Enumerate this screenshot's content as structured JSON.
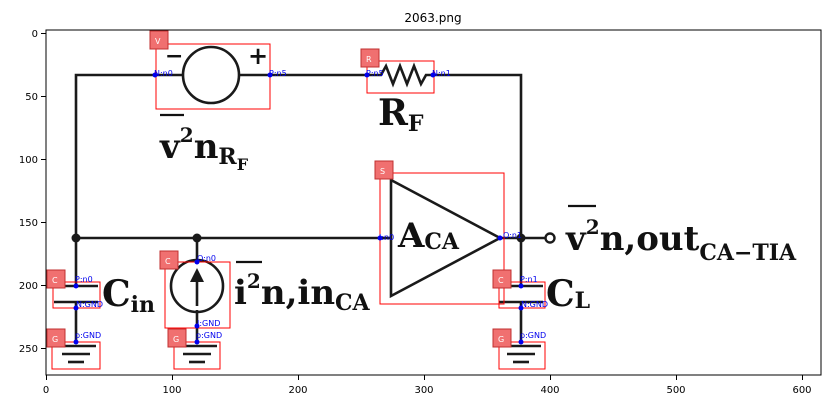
{
  "title": "2063.png",
  "x_ticks": [
    "0",
    "100",
    "200",
    "300",
    "400",
    "500",
    "600"
  ],
  "y_ticks": [
    "0",
    "50",
    "100",
    "150",
    "200",
    "250"
  ],
  "component_tags": {
    "v_source": "V",
    "resistor": "R",
    "amp": "S",
    "cin": "C",
    "current_source": "C",
    "cl": "C",
    "gnd_left": "G",
    "gnd_mid": "G",
    "gnd_right": "G"
  },
  "pin_labels": {
    "v_n0": "N:n0",
    "v_p5": "P:n5",
    "r_p5": "P:n5",
    "r_n1": "N:n1",
    "amp_in": "I:n0",
    "amp_out": "O:n1",
    "cin_p": "P:n0",
    "cin_n": "N:GND",
    "isrc_o": "O:n0",
    "isrc_i": "I:GND",
    "cl_p": "P:n1",
    "cl_n": "N:GND",
    "gnd_left": "p:GND",
    "gnd_mid": "p:GND",
    "gnd_right": "p:GND"
  },
  "circuit_text": {
    "rf_main": "R",
    "rf_sub": "F",
    "vn_v": "v",
    "vn_sup": "2",
    "vn_n": "n",
    "vn_sub": "R",
    "vn_subsub": "F",
    "aca_main": "A",
    "aca_sub": "CA",
    "cin_main": "C",
    "cin_sub": "in",
    "in_i": "i",
    "in_sup": "2",
    "in_rest": "n,in",
    "in_sub": "CA",
    "cl_main": "C",
    "cl_sub": "L",
    "out_v": "v",
    "out_sup": "2",
    "out_rest": "n,out",
    "out_sub": "CA−TIA"
  },
  "symbols": {
    "plus": "+",
    "minus": "−"
  }
}
